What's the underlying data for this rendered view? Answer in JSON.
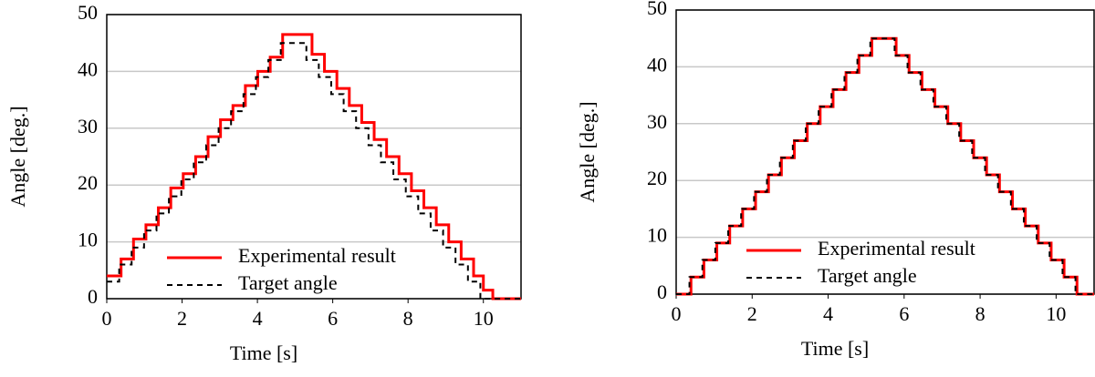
{
  "chart_data": [
    {
      "type": "line",
      "drawstyle": "steps-post",
      "xlabel": "Time [s]",
      "ylabel": "Angle [deg.]",
      "xlim": [
        0,
        11
      ],
      "ylim": [
        0,
        50
      ],
      "xticks": [
        0,
        2,
        4,
        6,
        8,
        10
      ],
      "yticks": [
        0,
        10,
        20,
        30,
        40,
        50
      ],
      "grid": true,
      "legend": "lower center",
      "series": [
        {
          "name": "Experimental result",
          "color": "#ff0000",
          "style": "solid",
          "x": [
            0,
            0.38,
            0.71,
            1.04,
            1.37,
            1.7,
            2.03,
            2.36,
            2.69,
            3.02,
            3.35,
            3.68,
            4.01,
            4.34,
            4.67,
            5.45,
            5.78,
            6.11,
            6.44,
            6.77,
            7.1,
            7.43,
            7.76,
            8.09,
            8.42,
            8.75,
            9.08,
            9.41,
            9.74,
            10.0,
            10.25,
            11
          ],
          "values": [
            4,
            7,
            10.5,
            13,
            16,
            19.5,
            22,
            25,
            28.5,
            31.5,
            34,
            37.5,
            40,
            42.5,
            46.5,
            43,
            40,
            37,
            34,
            31,
            28,
            25,
            22,
            19,
            16,
            13,
            10,
            7,
            4,
            1.5,
            0,
            0
          ]
        },
        {
          "name": "Target angle",
          "color": "#000000",
          "style": "dashed",
          "x": [
            0,
            0.33,
            0.66,
            0.99,
            1.32,
            1.65,
            1.98,
            2.31,
            2.64,
            2.97,
            3.3,
            3.63,
            3.96,
            4.29,
            4.62,
            5.3,
            5.63,
            5.96,
            6.29,
            6.62,
            6.95,
            7.28,
            7.61,
            7.94,
            8.27,
            8.6,
            8.93,
            9.26,
            9.59,
            9.92,
            11
          ],
          "values": [
            3,
            6,
            9,
            12,
            15,
            18,
            21,
            24,
            27,
            30,
            33,
            36,
            39,
            42,
            45,
            42,
            39,
            36,
            33,
            30,
            27,
            24,
            21,
            18,
            15,
            12,
            9,
            6,
            3,
            0,
            0
          ]
        }
      ]
    },
    {
      "type": "line",
      "drawstyle": "steps-post",
      "xlabel": "Time [s]",
      "ylabel": "Angle [deg.]",
      "xlim": [
        0,
        11
      ],
      "ylim": [
        0,
        50
      ],
      "xticks": [
        0,
        2,
        4,
        6,
        8,
        10
      ],
      "yticks": [
        0,
        10,
        20,
        30,
        40,
        50
      ],
      "grid": true,
      "legend": "lower center",
      "series": [
        {
          "name": "Experimental result",
          "color": "#ff0000",
          "style": "solid",
          "x": [
            0,
            0.39,
            0.73,
            1.07,
            1.41,
            1.75,
            2.09,
            2.43,
            2.77,
            3.11,
            3.45,
            3.79,
            4.13,
            4.47,
            4.81,
            5.15,
            5.79,
            6.13,
            6.47,
            6.81,
            7.15,
            7.49,
            7.83,
            8.17,
            8.51,
            8.85,
            9.19,
            9.53,
            9.87,
            10.21,
            10.55,
            11
          ],
          "values": [
            0,
            3,
            6,
            9,
            12,
            15,
            18,
            21,
            24,
            27,
            30,
            33,
            36,
            39,
            42,
            45,
            42,
            39,
            36,
            33,
            30,
            27,
            24,
            21,
            18,
            15,
            12,
            9,
            6,
            3,
            0,
            0
          ]
        },
        {
          "name": "Target angle",
          "color": "#000000",
          "style": "dashed",
          "x": [
            0,
            0.35,
            0.69,
            1.03,
            1.37,
            1.71,
            2.05,
            2.39,
            2.73,
            3.07,
            3.41,
            3.75,
            4.09,
            4.43,
            4.77,
            5.11,
            5.75,
            6.09,
            6.43,
            6.77,
            7.11,
            7.45,
            7.79,
            8.13,
            8.47,
            8.81,
            9.15,
            9.49,
            9.83,
            10.17,
            10.51,
            11
          ],
          "values": [
            0,
            3,
            6,
            9,
            12,
            15,
            18,
            21,
            24,
            27,
            30,
            33,
            36,
            39,
            42,
            45,
            42,
            39,
            36,
            33,
            30,
            27,
            24,
            21,
            18,
            15,
            12,
            9,
            6,
            3,
            0,
            0
          ]
        }
      ]
    }
  ]
}
